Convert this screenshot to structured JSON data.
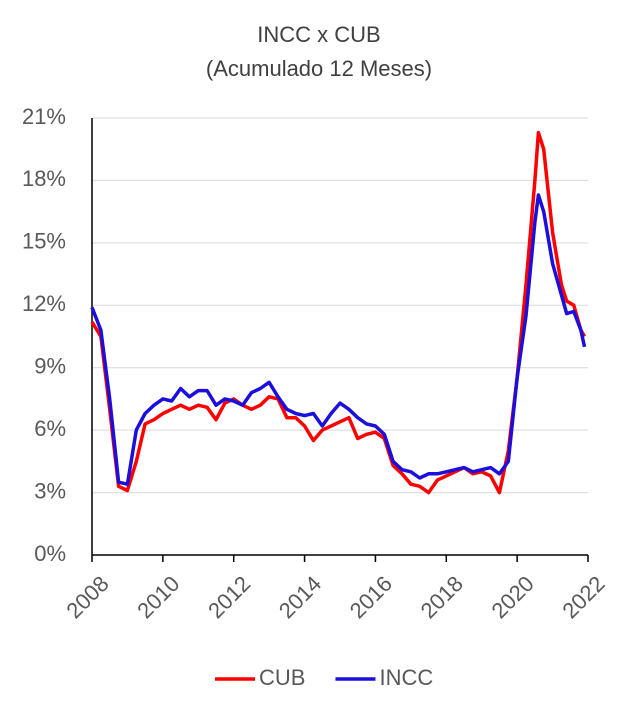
{
  "chart_data": {
    "type": "line",
    "title": "INCC x CUB",
    "subtitle": "(Acumulado 12 Meses)",
    "x": [
      2008,
      2008.25,
      2008.5,
      2008.75,
      2009,
      2009.25,
      2009.5,
      2009.75,
      2010,
      2010.25,
      2010.5,
      2010.75,
      2011,
      2011.25,
      2011.5,
      2011.75,
      2012,
      2012.25,
      2012.5,
      2012.75,
      2013,
      2013.25,
      2013.5,
      2013.75,
      2014,
      2014.25,
      2014.5,
      2014.75,
      2015,
      2015.25,
      2015.5,
      2015.75,
      2016,
      2016.25,
      2016.5,
      2016.75,
      2017,
      2017.25,
      2017.5,
      2017.75,
      2018,
      2018.25,
      2018.5,
      2018.75,
      2019,
      2019.25,
      2019.5,
      2019.75,
      2020,
      2020.25,
      2020.5,
      2020.6,
      2020.75,
      2021,
      2021.25,
      2021.4,
      2021.6,
      2021.8,
      2021.9
    ],
    "series": [
      {
        "name": "CUB",
        "color": "#ff0000",
        "values": [
          11.2,
          10.5,
          7.0,
          3.3,
          3.1,
          4.5,
          6.3,
          6.5,
          6.8,
          7.0,
          7.2,
          7.0,
          7.2,
          7.1,
          6.5,
          7.3,
          7.5,
          7.2,
          7.0,
          7.2,
          7.6,
          7.5,
          6.6,
          6.6,
          6.2,
          5.5,
          6.0,
          6.2,
          6.4,
          6.6,
          5.6,
          5.8,
          5.9,
          5.6,
          4.3,
          3.9,
          3.4,
          3.3,
          3.0,
          3.6,
          3.8,
          4.0,
          4.2,
          3.9,
          4.0,
          3.8,
          3.0,
          5.0,
          8.5,
          13.0,
          18.0,
          20.3,
          19.5,
          15.5,
          13.0,
          12.2,
          12.0,
          10.8,
          10.5
        ]
      },
      {
        "name": "INCC",
        "color": "#1c0fdc",
        "values": [
          11.9,
          10.8,
          7.5,
          3.5,
          3.4,
          6.0,
          6.8,
          7.2,
          7.5,
          7.4,
          8.0,
          7.6,
          7.9,
          7.9,
          7.2,
          7.5,
          7.4,
          7.2,
          7.8,
          8.0,
          8.3,
          7.6,
          7.0,
          6.8,
          6.7,
          6.8,
          6.2,
          6.8,
          7.3,
          7.0,
          6.6,
          6.3,
          6.2,
          5.8,
          4.5,
          4.1,
          4.0,
          3.7,
          3.9,
          3.9,
          4.0,
          4.1,
          4.2,
          4.0,
          4.1,
          4.2,
          3.9,
          4.5,
          8.5,
          11.5,
          16.0,
          17.3,
          16.5,
          14.0,
          12.5,
          11.6,
          11.7,
          10.8,
          10.0
        ]
      }
    ],
    "xlim": [
      2008,
      2022
    ],
    "xticks": [
      2008,
      2010,
      2012,
      2014,
      2016,
      2018,
      2020,
      2022
    ],
    "ylim": [
      0,
      21
    ],
    "yticks": [
      {
        "value": 0,
        "label": "0%"
      },
      {
        "value": 3,
        "label": "3%"
      },
      {
        "value": 6,
        "label": "6%"
      },
      {
        "value": 9,
        "label": "9%"
      },
      {
        "value": 12,
        "label": "12%"
      },
      {
        "value": 15,
        "label": "15%"
      },
      {
        "value": 18,
        "label": "18%"
      },
      {
        "value": 21,
        "label": "21%"
      }
    ],
    "grid": true,
    "legend": "bottom"
  }
}
